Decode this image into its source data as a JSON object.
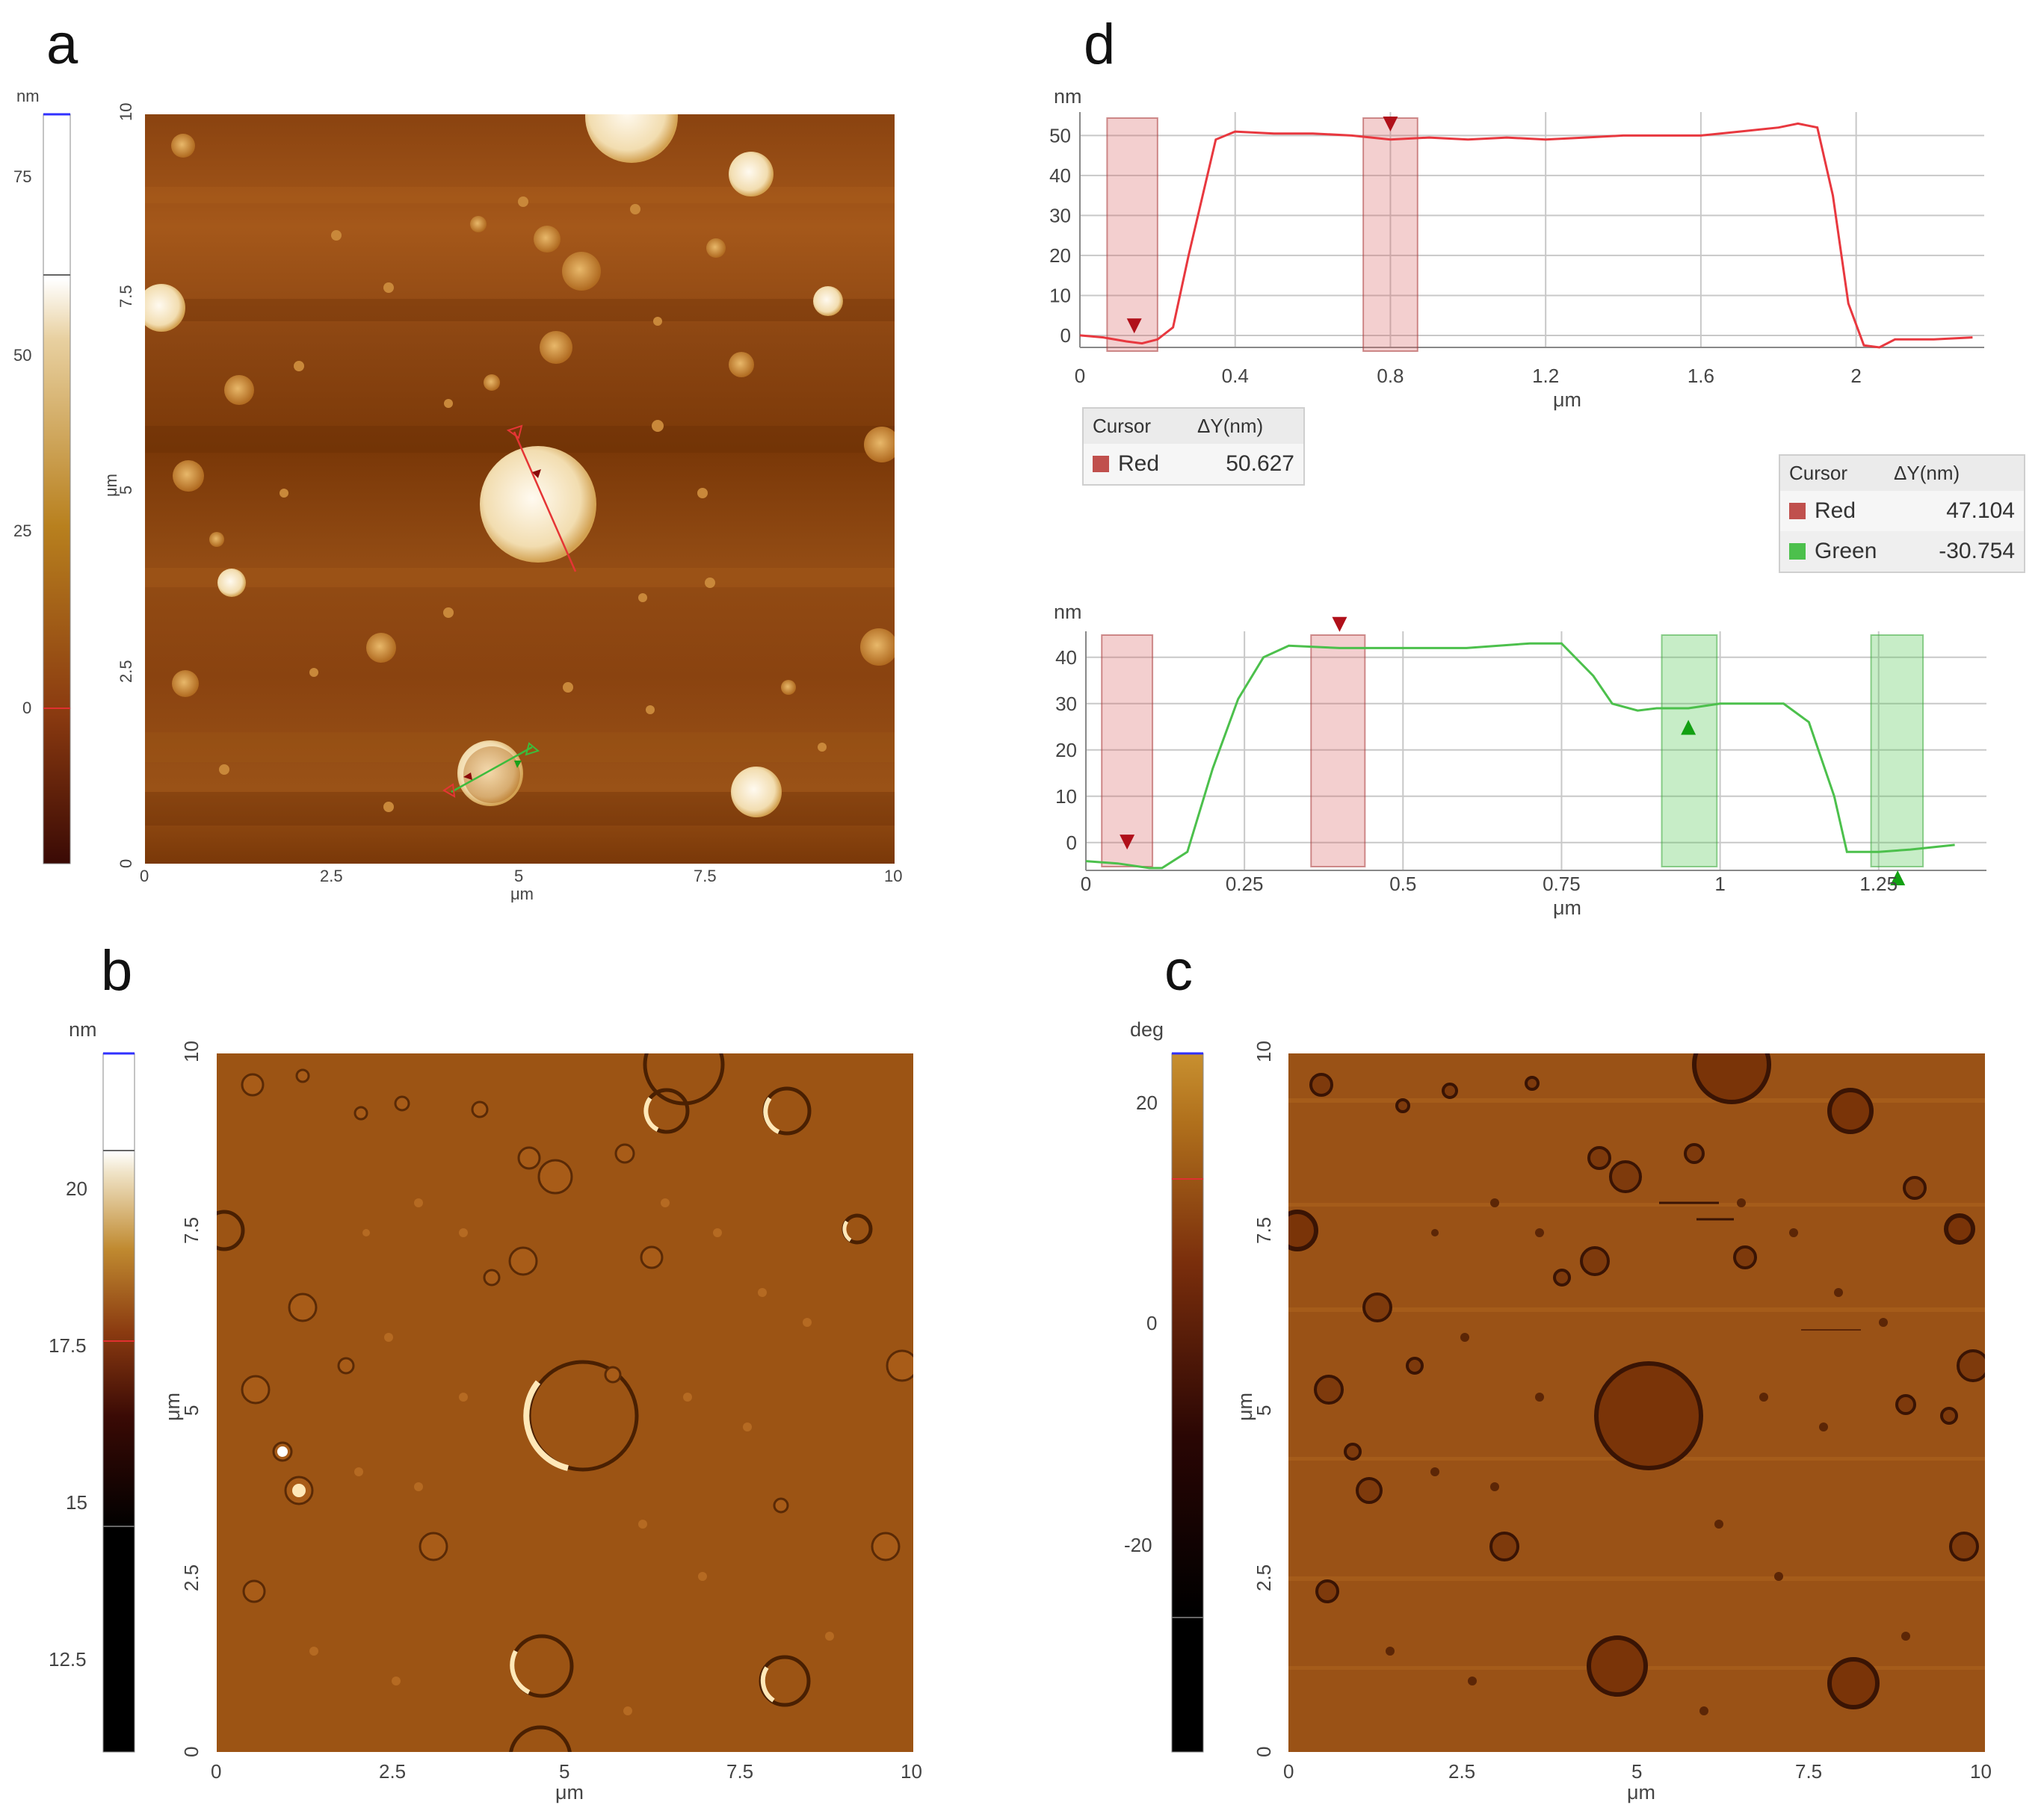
{
  "panels": {
    "a": {
      "letter": "a",
      "colorbar": {
        "unit": "nm",
        "ticks": [
          "75",
          "50",
          "25",
          "0"
        ]
      },
      "y_axis": {
        "unit": "μm",
        "ticks": [
          "10",
          "7.5",
          "5",
          "2.5",
          "0"
        ]
      },
      "x_axis": {
        "unit": "μm",
        "ticks": [
          "0",
          "2.5",
          "5",
          "7.5",
          "10"
        ]
      }
    },
    "b": {
      "letter": "b",
      "colorbar": {
        "unit": "nm",
        "ticks": [
          "20",
          "17.5",
          "15",
          "12.5"
        ]
      },
      "y_axis": {
        "unit": "μm",
        "ticks": [
          "10",
          "7.5",
          "5",
          "2.5",
          "0"
        ]
      },
      "x_axis": {
        "unit": "μm",
        "ticks": [
          "0",
          "2.5",
          "5",
          "7.5",
          "10"
        ]
      }
    },
    "c": {
      "letter": "c",
      "colorbar": {
        "unit": "deg",
        "ticks": [
          "20",
          "0",
          "-20"
        ]
      },
      "y_axis": {
        "unit": "μm",
        "ticks": [
          "10",
          "7.5",
          "5",
          "2.5",
          "0"
        ]
      },
      "x_axis": {
        "unit": "μm",
        "ticks": [
          "0",
          "2.5",
          "5",
          "7.5",
          "10"
        ]
      }
    },
    "d": {
      "letter": "d"
    }
  },
  "legends": {
    "top": {
      "header": [
        "Cursor",
        "ΔY(nm)"
      ],
      "rows": [
        {
          "name": "Red",
          "value": "50.627",
          "color": "#c0504d"
        }
      ]
    },
    "bottom": {
      "header": [
        "Cursor",
        "ΔY(nm)"
      ],
      "rows": [
        {
          "name": "Red",
          "value": "47.104",
          "color": "#c0504d"
        },
        {
          "name": "Green",
          "value": "-30.754",
          "color": "#4cc04c"
        }
      ]
    }
  },
  "chart_data": [
    {
      "type": "line",
      "ylabel": "nm",
      "xlabel": "μm",
      "xlim": [
        0,
        2.33
      ],
      "ylim": [
        -3,
        54
      ],
      "xticks": [
        "0",
        "0.4",
        "0.8",
        "1.2",
        "1.6",
        "2"
      ],
      "yticks": [
        "0",
        "10",
        "20",
        "30",
        "40",
        "50"
      ],
      "grid": true,
      "series": [
        {
          "color": "#e8383f",
          "x": [
            0,
            0.06,
            0.12,
            0.16,
            0.2,
            0.24,
            0.28,
            0.35,
            0.4,
            0.5,
            0.6,
            0.7,
            0.8,
            0.9,
            1.0,
            1.1,
            1.2,
            1.3,
            1.4,
            1.5,
            1.6,
            1.7,
            1.8,
            1.85,
            1.9,
            1.94,
            1.98,
            2.02,
            2.06,
            2.1,
            2.2,
            2.3
          ],
          "y": [
            0,
            -0.5,
            -1.5,
            -2,
            -1,
            2,
            20,
            49,
            51,
            50.5,
            50.5,
            50,
            49,
            49.5,
            49,
            49.5,
            49,
            49.5,
            50,
            50,
            50,
            51,
            52,
            53,
            52,
            35,
            8,
            -2.5,
            -3,
            -1,
            -1,
            -0.5
          ]
        }
      ],
      "cursor_bands": [
        {
          "color": "red",
          "x": [
            0.07,
            0.2
          ]
        },
        {
          "color": "red",
          "x": [
            0.73,
            0.87
          ]
        }
      ],
      "markers": [
        {
          "color": "red",
          "x": 0.14,
          "y": 0.5,
          "direction": "down"
        },
        {
          "color": "red",
          "x": 0.8,
          "y": 51,
          "direction": "down"
        }
      ]
    },
    {
      "type": "line",
      "ylabel": "nm",
      "xlabel": "μm",
      "xlim": [
        0,
        1.42
      ],
      "ylim": [
        -6,
        44
      ],
      "xticks": [
        "0",
        "0.25",
        "0.5",
        "0.75",
        "1",
        "1.25"
      ],
      "yticks": [
        "0",
        "10",
        "20",
        "30",
        "40"
      ],
      "grid": true,
      "series": [
        {
          "color": "#4cc04c",
          "x": [
            0,
            0.05,
            0.1,
            0.12,
            0.16,
            0.2,
            0.24,
            0.28,
            0.32,
            0.4,
            0.5,
            0.6,
            0.7,
            0.75,
            0.8,
            0.83,
            0.87,
            0.9,
            0.95,
            1.0,
            1.05,
            1.1,
            1.14,
            1.18,
            1.2,
            1.25,
            1.3,
            1.37
          ],
          "y": [
            -4,
            -4.5,
            -5.5,
            -5.5,
            -2,
            16,
            31,
            40,
            42.5,
            42,
            42,
            42,
            43,
            43,
            36,
            30,
            28.5,
            29,
            29,
            30,
            30,
            30,
            26,
            10,
            -2,
            -2,
            -1.5,
            -0.5
          ]
        }
      ],
      "cursor_bands": [
        {
          "color": "red",
          "x": [
            0.025,
            0.105
          ]
        },
        {
          "color": "red",
          "x": [
            0.355,
            0.44
          ]
        },
        {
          "color": "green",
          "x": [
            0.908,
            0.995
          ]
        },
        {
          "color": "green",
          "x": [
            1.238,
            1.32
          ]
        }
      ],
      "markers": [
        {
          "color": "red",
          "x": 0.065,
          "y": -1.5,
          "direction": "down"
        },
        {
          "color": "red",
          "x": 0.4,
          "y": 45.5,
          "direction": "down"
        },
        {
          "color": "green",
          "x": 0.95,
          "y": 26.5,
          "direction": "up"
        },
        {
          "color": "green",
          "x": 1.28,
          "y": -6,
          "direction": "up"
        }
      ]
    }
  ]
}
